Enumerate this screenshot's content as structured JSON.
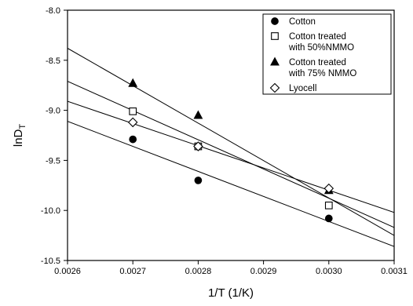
{
  "chart_data": {
    "type": "scatter",
    "title": "",
    "xlabel": "1/T (1/K)",
    "ylabel_main": "lnD",
    "ylabel_sub": "T",
    "xlim": [
      0.0026,
      0.0031
    ],
    "ylim": [
      -10.5,
      -8.0
    ],
    "x_ticks": [
      0.0026,
      0.0027,
      0.0028,
      0.0029,
      0.003,
      0.0031
    ],
    "x_tick_labels": [
      "0.0026",
      "0.0027",
      "0.0028",
      "0.0029",
      "0.0030",
      "0.0031"
    ],
    "y_ticks": [
      -8.0,
      -8.5,
      -9.0,
      -9.5,
      -10.0,
      -10.5
    ],
    "y_tick_labels": [
      "-8.0",
      "-8.5",
      "-9.0",
      "-9.5",
      "-10.0",
      "-10.5"
    ],
    "grid": false,
    "legend_position": "top-right",
    "series": [
      {
        "name_lines": [
          "Cotton"
        ],
        "marker": "circle",
        "fill": "#000000",
        "x": [
          0.0027,
          0.0028,
          0.003
        ],
        "y": [
          -9.29,
          -9.7,
          -10.08
        ],
        "fit_line": {
          "x": [
            0.0026,
            0.0031
          ],
          "y": [
            -9.11,
            -10.36
          ]
        }
      },
      {
        "name_lines": [
          "Cotton treated",
          "with 50%NMMO"
        ],
        "marker": "square",
        "fill": "#ffffff",
        "x": [
          0.0027,
          0.0028,
          0.003
        ],
        "y": [
          -9.01,
          -9.36,
          -9.95
        ],
        "fit_line": {
          "x": [
            0.0026,
            0.0031
          ],
          "y": [
            -8.71,
            -10.17
          ]
        }
      },
      {
        "name_lines": [
          "Cotton treated",
          "with 75% NMMO"
        ],
        "marker": "triangle",
        "fill": "#000000",
        "x": [
          0.0027,
          0.0028,
          0.003
        ],
        "y": [
          -8.73,
          -9.05,
          -9.8
        ],
        "fit_line": {
          "x": [
            0.0026,
            0.0031
          ],
          "y": [
            -8.38,
            -10.25
          ]
        }
      },
      {
        "name_lines": [
          "Lyocell"
        ],
        "marker": "diamond",
        "fill": "#ffffff",
        "x": [
          0.0027,
          0.0028,
          0.003
        ],
        "y": [
          -9.12,
          -9.36,
          -9.78
        ],
        "fit_line": {
          "x": [
            0.0026,
            0.0031
          ],
          "y": [
            -8.91,
            -10.02
          ]
        }
      }
    ]
  }
}
